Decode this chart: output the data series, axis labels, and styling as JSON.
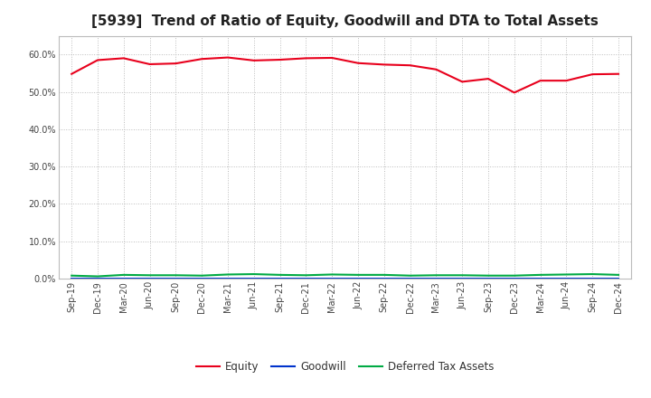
{
  "title": "[5939]  Trend of Ratio of Equity, Goodwill and DTA to Total Assets",
  "x_labels": [
    "Sep-19",
    "Dec-19",
    "Mar-20",
    "Jun-20",
    "Sep-20",
    "Dec-20",
    "Mar-21",
    "Jun-21",
    "Sep-21",
    "Dec-21",
    "Mar-22",
    "Jun-22",
    "Sep-22",
    "Dec-22",
    "Mar-23",
    "Jun-23",
    "Sep-23",
    "Dec-23",
    "Mar-24",
    "Jun-24",
    "Sep-24",
    "Dec-24"
  ],
  "equity": [
    0.548,
    0.585,
    0.59,
    0.574,
    0.576,
    0.588,
    0.592,
    0.584,
    0.586,
    0.59,
    0.591,
    0.577,
    0.573,
    0.571,
    0.56,
    0.527,
    0.535,
    0.498,
    0.53,
    0.53,
    0.547,
    0.548
  ],
  "goodwill": [
    0.0,
    0.0,
    0.0,
    0.0,
    0.0,
    0.0,
    0.0,
    0.0,
    0.0,
    0.0,
    0.0,
    0.0,
    0.0,
    0.0,
    0.0,
    0.0,
    0.0,
    0.0,
    0.0,
    0.0,
    0.0,
    0.0
  ],
  "dta": [
    0.008,
    0.006,
    0.01,
    0.009,
    0.009,
    0.008,
    0.011,
    0.012,
    0.01,
    0.009,
    0.011,
    0.01,
    0.01,
    0.008,
    0.009,
    0.009,
    0.008,
    0.008,
    0.01,
    0.011,
    0.012,
    0.01
  ],
  "equity_color": "#e8001c",
  "goodwill_color": "#0033cc",
  "dta_color": "#00aa44",
  "ylim": [
    0.0,
    0.65
  ],
  "yticks": [
    0.0,
    0.1,
    0.2,
    0.3,
    0.4,
    0.5,
    0.6
  ],
  "background_color": "#ffffff",
  "grid_color": "#bbbbbb",
  "title_fontsize": 11,
  "tick_fontsize": 7,
  "legend_fontsize": 8.5
}
